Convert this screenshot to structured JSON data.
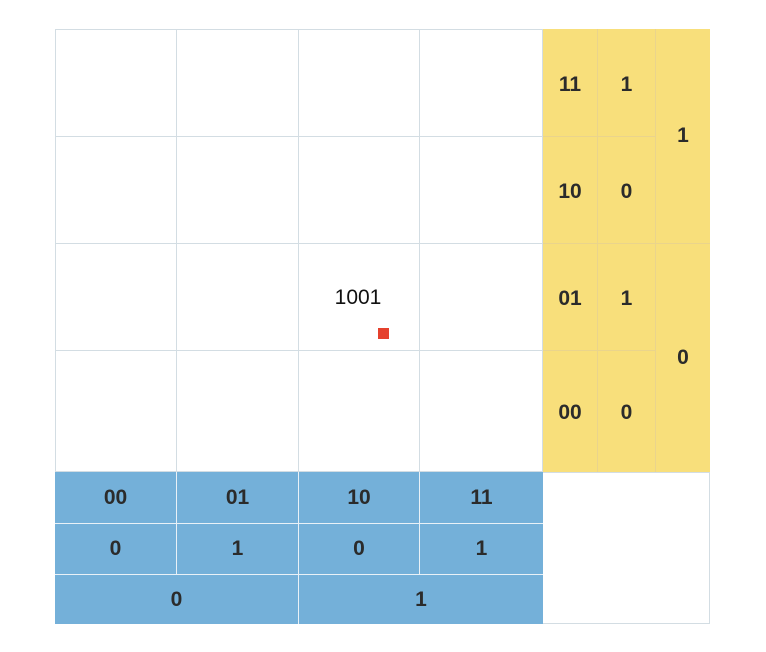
{
  "diagram": {
    "row_codes": [
      "11",
      "10",
      "01",
      "00"
    ],
    "row_bit_low": [
      "1",
      "0",
      "1",
      "0"
    ],
    "row_bit_high": [
      "1",
      "0"
    ],
    "col_codes": [
      "00",
      "01",
      "10",
      "11"
    ],
    "col_bit_low": [
      "0",
      "1",
      "0",
      "1"
    ],
    "col_bit_high": [
      "0",
      "1"
    ],
    "marked_cell": {
      "label": "1001",
      "row_code": "01",
      "col_code": "10"
    },
    "colors": {
      "row_header": "#f8df7b",
      "col_header": "#74b0d9",
      "marker": "#e5412d",
      "grid": "#d3dde3"
    }
  }
}
